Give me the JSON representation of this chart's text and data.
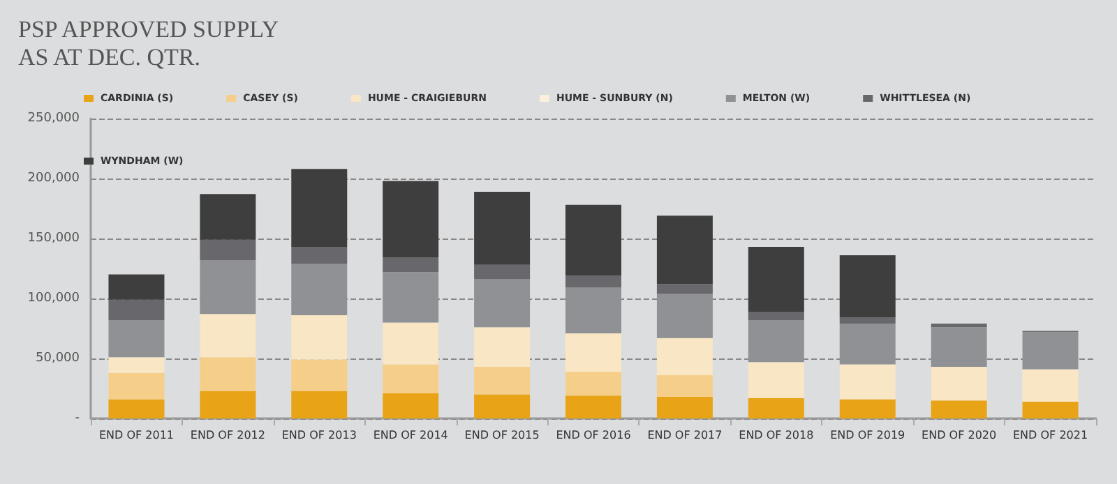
{
  "chart_data": {
    "type": "bar",
    "title": "PSP APPROVED SUPPLY\nAS AT DEC. QTR.",
    "stacked": true,
    "legend": "top",
    "grid": "y",
    "categories": [
      "END OF 2011",
      "END OF 2012",
      "END OF 2013",
      "END OF 2014",
      "END OF 2015",
      "END OF 2016",
      "END OF 2017",
      "END OF 2018",
      "END OF 2019",
      "END OF 2020",
      "END OF 2021"
    ],
    "ylim": [
      0,
      250000
    ],
    "yticks": [
      {
        "value": 0,
        "label": "-"
      },
      {
        "value": 50000,
        "label": "50,000"
      },
      {
        "value": 100000,
        "label": "100,000"
      },
      {
        "value": 150000,
        "label": "150,000"
      },
      {
        "value": 200000,
        "label": "200,000"
      },
      {
        "value": 250000,
        "label": "250,000"
      }
    ],
    "series": [
      {
        "name": "CARDINIA (S)",
        "color": "#e8a317",
        "values": [
          16000,
          23000,
          23000,
          21000,
          20000,
          19000,
          18000,
          17000,
          16000,
          15000,
          14000
        ]
      },
      {
        "name": "CASEY (S)",
        "color": "#f5cf8a",
        "values": [
          22000,
          28000,
          26000,
          24000,
          23000,
          20000,
          18000,
          0,
          0,
          0,
          0
        ]
      },
      {
        "name": "HUME - CRAIGIEBURN",
        "color": "#f8e6c4",
        "values": [
          13000,
          36000,
          37000,
          35000,
          33000,
          32000,
          31000,
          30000,
          29000,
          28000,
          27000
        ]
      },
      {
        "name": "HUME - SUNBURY (N)",
        "color": "#faf0dc",
        "values": [
          0,
          0,
          0,
          0,
          0,
          0,
          0,
          0,
          0,
          0,
          0
        ]
      },
      {
        "name": "MELTON (W)",
        "color": "#909194",
        "values": [
          31000,
          45000,
          43000,
          42000,
          40000,
          38000,
          37000,
          35000,
          34000,
          33000,
          31000
        ]
      },
      {
        "name": "WHITTLESEA (N)",
        "color": "#68686c",
        "values": [
          17000,
          17000,
          14000,
          12000,
          12000,
          10000,
          8000,
          7000,
          5000,
          3000,
          1000
        ]
      },
      {
        "name": "WYNDHAM (W)",
        "color": "#3e3e3e",
        "values": [
          21000,
          38000,
          65000,
          64000,
          61000,
          59000,
          57000,
          54000,
          52000,
          0,
          0
        ]
      }
    ]
  }
}
